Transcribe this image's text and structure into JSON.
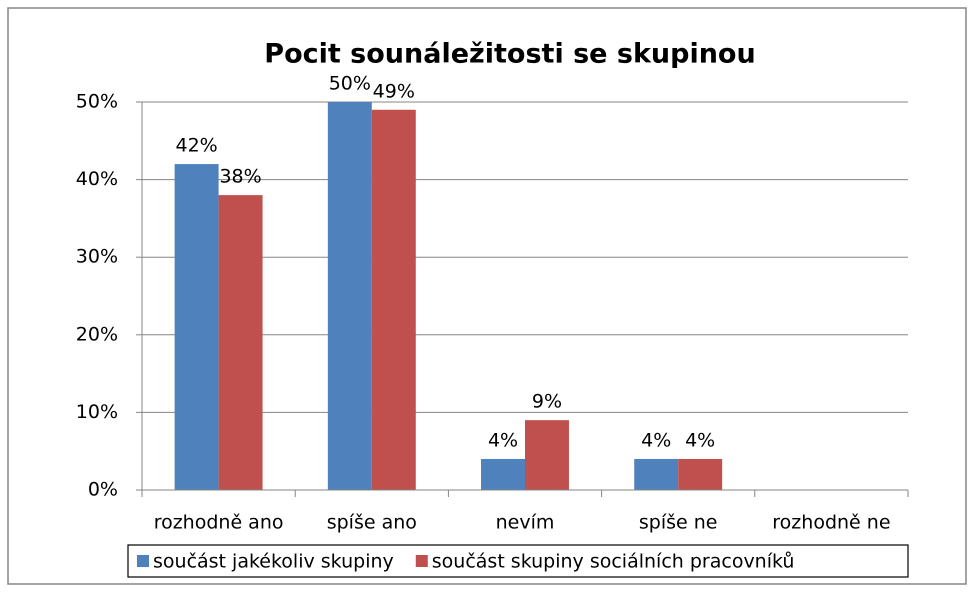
{
  "chart_data": {
    "type": "bar",
    "title": "Pocit sounáležitosti se skupinou",
    "categories": [
      "rozhodně ano",
      "spíše ano",
      "nevím",
      "spíše ne",
      "rozhodně ne"
    ],
    "series": [
      {
        "name": "součást jakékoliv skupiny",
        "color": "#4f81bd",
        "values": [
          42,
          50,
          4,
          4,
          0
        ],
        "value_labels": [
          "42%",
          "50%",
          "4%",
          "4%",
          null
        ]
      },
      {
        "name": "součást skupiny sociálních pracovníků",
        "color": "#c0504d",
        "values": [
          38,
          49,
          9,
          4,
          0
        ],
        "value_labels": [
          "38%",
          "49%",
          "9%",
          "4%",
          null
        ]
      }
    ],
    "ylim": [
      0,
      50
    ],
    "yticks": [
      {
        "value": 0,
        "label": "0%"
      },
      {
        "value": 10,
        "label": "10%"
      },
      {
        "value": 20,
        "label": "20%"
      },
      {
        "value": 30,
        "label": "30%"
      },
      {
        "value": 40,
        "label": "40%"
      },
      {
        "value": 50,
        "label": "50%"
      }
    ],
    "grid": true,
    "legend": "bottom"
  }
}
